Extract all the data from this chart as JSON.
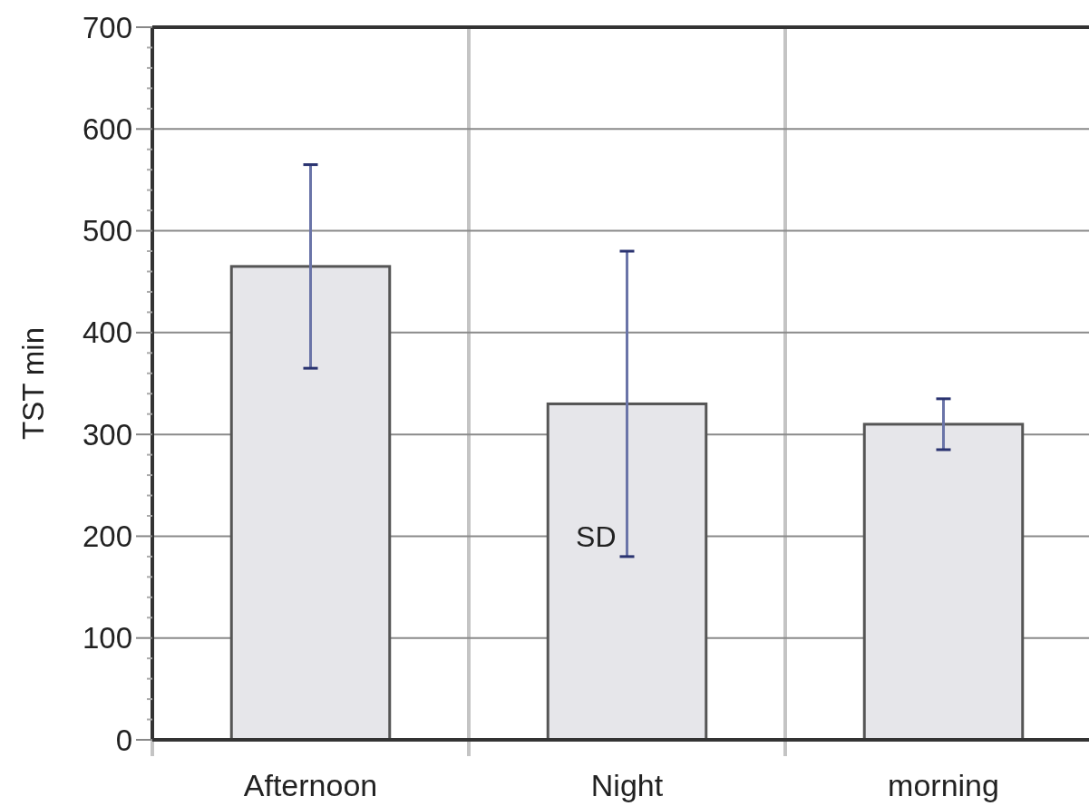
{
  "chart_data": {
    "type": "bar",
    "ylabel": "TST min",
    "categories": [
      "Afternoon",
      "Night",
      "morning"
    ],
    "values": [
      465,
      330,
      310
    ],
    "errors": [
      100,
      150,
      25
    ],
    "color": "#e6e6ea",
    "ylim": [
      0,
      700
    ],
    "yticks": [
      0,
      100,
      200,
      300,
      400,
      500,
      600,
      700
    ],
    "grid": true,
    "annotations": [
      {
        "text": "SD",
        "x": "Night",
        "y": 200
      }
    ]
  }
}
